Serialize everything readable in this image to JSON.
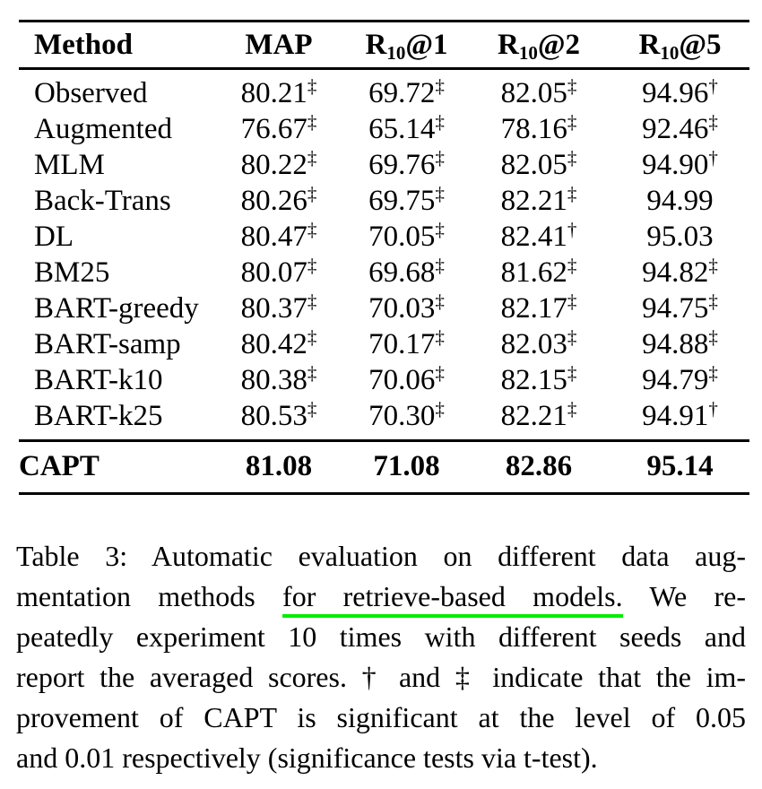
{
  "accent_underline_color": "#00ee00",
  "table": {
    "columns": [
      {
        "pre": "Method",
        "sub": "",
        "post": ""
      },
      {
        "pre": "MAP",
        "sub": "",
        "post": ""
      },
      {
        "pre": "R",
        "sub": "10",
        "post": "@1"
      },
      {
        "pre": "R",
        "sub": "10",
        "post": "@2"
      },
      {
        "pre": "R",
        "sub": "10",
        "post": "@5"
      }
    ],
    "rows": [
      {
        "method": "Observed",
        "cells": [
          {
            "v": "80.21",
            "s": "‡"
          },
          {
            "v": "69.72",
            "s": "‡"
          },
          {
            "v": "82.05",
            "s": "‡"
          },
          {
            "v": "94.96",
            "s": "†"
          }
        ]
      },
      {
        "method": "Augmented",
        "cells": [
          {
            "v": "76.67",
            "s": "‡"
          },
          {
            "v": "65.14",
            "s": "‡"
          },
          {
            "v": "78.16",
            "s": "‡"
          },
          {
            "v": "92.46",
            "s": "‡"
          }
        ]
      },
      {
        "method": "MLM",
        "cells": [
          {
            "v": "80.22",
            "s": "‡"
          },
          {
            "v": "69.76",
            "s": "‡"
          },
          {
            "v": "82.05",
            "s": "‡"
          },
          {
            "v": "94.90",
            "s": "†"
          }
        ]
      },
      {
        "method": "Back-Trans",
        "cells": [
          {
            "v": "80.26",
            "s": "‡"
          },
          {
            "v": "69.75",
            "s": "‡"
          },
          {
            "v": "82.21",
            "s": "‡"
          },
          {
            "v": "94.99",
            "s": ""
          }
        ]
      },
      {
        "method": "DL",
        "cells": [
          {
            "v": "80.47",
            "s": "‡"
          },
          {
            "v": "70.05",
            "s": "‡"
          },
          {
            "v": "82.41",
            "s": "†"
          },
          {
            "v": "95.03",
            "s": ""
          }
        ]
      },
      {
        "method": "BM25",
        "cells": [
          {
            "v": "80.07",
            "s": "‡"
          },
          {
            "v": "69.68",
            "s": "‡"
          },
          {
            "v": "81.62",
            "s": "‡"
          },
          {
            "v": "94.82",
            "s": "‡"
          }
        ]
      },
      {
        "method": "BART-greedy",
        "cells": [
          {
            "v": "80.37",
            "s": "‡"
          },
          {
            "v": "70.03",
            "s": "‡"
          },
          {
            "v": "82.17",
            "s": "‡"
          },
          {
            "v": "94.75",
            "s": "‡"
          }
        ]
      },
      {
        "method": "BART-samp",
        "cells": [
          {
            "v": "80.42",
            "s": "‡"
          },
          {
            "v": "70.17",
            "s": "‡"
          },
          {
            "v": "82.03",
            "s": "‡"
          },
          {
            "v": "94.88",
            "s": "‡"
          }
        ]
      },
      {
        "method": "BART-k10",
        "cells": [
          {
            "v": "80.38",
            "s": "‡"
          },
          {
            "v": "70.06",
            "s": "‡"
          },
          {
            "v": "82.15",
            "s": "‡"
          },
          {
            "v": "94.79",
            "s": "‡"
          }
        ]
      },
      {
        "method": "BART-k25",
        "cells": [
          {
            "v": "80.53",
            "s": "‡"
          },
          {
            "v": "70.30",
            "s": "‡"
          },
          {
            "v": "82.21",
            "s": "‡"
          },
          {
            "v": "94.91",
            "s": "†"
          }
        ]
      }
    ],
    "highlight_row": {
      "method": "CAPT",
      "cells": [
        {
          "v": "81.08",
          "s": ""
        },
        {
          "v": "71.08",
          "s": ""
        },
        {
          "v": "82.86",
          "s": ""
        },
        {
          "v": "95.14",
          "s": ""
        }
      ]
    }
  },
  "caption": {
    "lines": [
      {
        "segments": [
          {
            "t": "Table 3:  Automatic evaluation on different data aug-"
          }
        ]
      },
      {
        "segments": [
          {
            "t": "mentation methods "
          },
          {
            "t": "for retrieve-based models.",
            "u": true
          },
          {
            "t": "  We re-"
          }
        ]
      },
      {
        "segments": [
          {
            "t": "peatedly experiment 10 times with different seeds and"
          }
        ]
      },
      {
        "segments": [
          {
            "t": "report the averaged scores. † and ‡ indicate that the im-"
          }
        ]
      },
      {
        "segments": [
          {
            "t": "provement of CAPT is significant at the level of 0.05"
          }
        ]
      },
      {
        "segments": [
          {
            "t": "and 0.01 respectively (significance tests via t-test)."
          }
        ]
      }
    ]
  }
}
